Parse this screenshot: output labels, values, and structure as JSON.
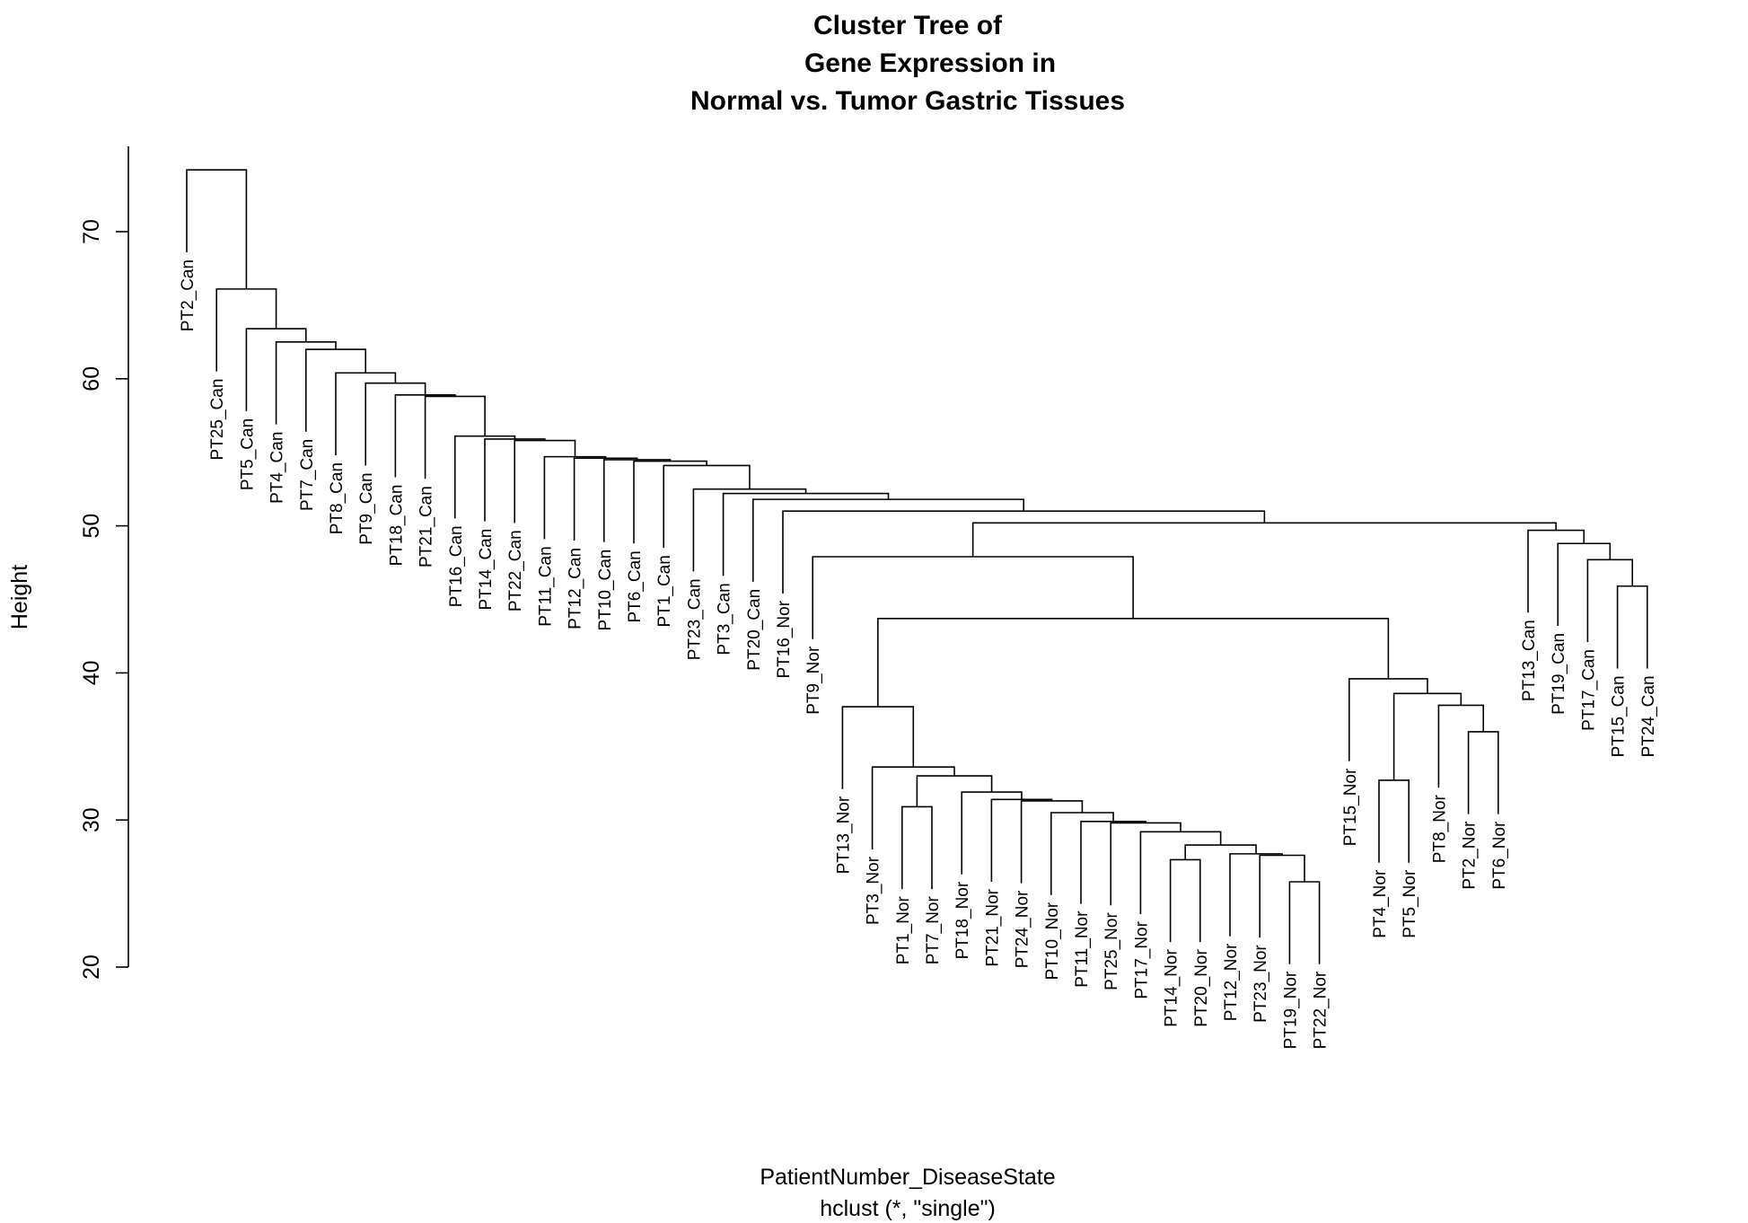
{
  "chart_data": {
    "type": "dendrogram",
    "title": [
      "Cluster Tree of",
      "Gene Expression in",
      "Normal vs. Tumor Gastric Tissues"
    ],
    "xlabel": "PatientNumber_DiseaseState",
    "ylabel": "Height",
    "subtitle": "hclust (*, \"single\")",
    "ylim": [
      20,
      75
    ],
    "yticks": [
      20,
      30,
      40,
      50,
      60,
      70
    ],
    "leaves": [
      "PT2_Can",
      "PT25_Can",
      "PT5_Can",
      "PT4_Can",
      "PT7_Can",
      "PT8_Can",
      "PT9_Can",
      "PT18_Can",
      "PT21_Can",
      "PT16_Can",
      "PT14_Can",
      "PT22_Can",
      "PT11_Can",
      "PT12_Can",
      "PT10_Can",
      "PT6_Can",
      "PT1_Can",
      "PT23_Can",
      "PT3_Can",
      "PT20_Can",
      "PT16_Nor",
      "PT9_Nor",
      "PT13_Nor",
      "PT3_Nor",
      "PT1_Nor",
      "PT7_Nor",
      "PT18_Nor",
      "PT21_Nor",
      "PT24_Nor",
      "PT10_Nor",
      "PT11_Nor",
      "PT25_Nor",
      "PT17_Nor",
      "PT14_Nor",
      "PT20_Nor",
      "PT12_Nor",
      "PT23_Nor",
      "PT19_Nor",
      "PT22_Nor",
      "PT15_Nor",
      "PT4_Nor",
      "PT5_Nor",
      "PT8_Nor",
      "PT2_Nor",
      "PT6_Nor",
      "PT13_Can",
      "PT19_Can",
      "PT17_Can",
      "PT15_Can",
      "PT24_Can"
    ],
    "merges": [
      {
        "id": "m_pt14n_pt20n",
        "left": "PT14_Nor",
        "right": "PT20_Nor",
        "height": 27.3
      },
      {
        "id": "m_pt19n_pt22n",
        "left": "PT19_Nor",
        "right": "PT22_Nor",
        "height": 25.8
      },
      {
        "id": "m_pt23n",
        "left": "PT23_Nor",
        "right": "m_pt19n_pt22n",
        "height": 27.6
      },
      {
        "id": "m_pt12n",
        "left": "PT12_Nor",
        "right": "m_pt23n",
        "height": 27.7
      },
      {
        "id": "m_nor_a",
        "left": "m_pt14n_pt20n",
        "right": "m_pt12n",
        "height": 28.3
      },
      {
        "id": "m_pt17n",
        "left": "PT17_Nor",
        "right": "m_nor_a",
        "height": 29.2
      },
      {
        "id": "m_pt25n",
        "left": "PT25_Nor",
        "right": "m_pt17n",
        "height": 29.8
      },
      {
        "id": "m_pt11n",
        "left": "PT11_Nor",
        "right": "m_pt25n",
        "height": 29.9
      },
      {
        "id": "m_pt10n",
        "left": "PT10_Nor",
        "right": "m_pt11n",
        "height": 30.5
      },
      {
        "id": "m_pt24n",
        "left": "PT24_Nor",
        "right": "m_pt10n",
        "height": 31.3
      },
      {
        "id": "m_pt21n",
        "left": "PT21_Nor",
        "right": "m_pt24n",
        "height": 31.4
      },
      {
        "id": "m_pt18n",
        "left": "PT18_Nor",
        "right": "m_pt21n",
        "height": 31.9
      },
      {
        "id": "m_pt1n_pt7n",
        "left": "PT1_Nor",
        "right": "PT7_Nor",
        "height": 30.9
      },
      {
        "id": "m_nor_b",
        "left": "m_pt1n_pt7n",
        "right": "m_pt18n",
        "height": 33.0
      },
      {
        "id": "m_pt3n",
        "left": "PT3_Nor",
        "right": "m_nor_b",
        "height": 33.6
      },
      {
        "id": "m_pt13n",
        "left": "PT13_Nor",
        "right": "m_pt3n",
        "height": 37.7
      },
      {
        "id": "m_pt4n_pt5n",
        "left": "PT4_Nor",
        "right": "PT5_Nor",
        "height": 32.7
      },
      {
        "id": "m_pt2n_pt6n",
        "left": "PT2_Nor",
        "right": "PT6_Nor",
        "height": 36.0
      },
      {
        "id": "m_pt8n",
        "left": "PT8_Nor",
        "right": "m_pt2n_pt6n",
        "height": 37.8
      },
      {
        "id": "m_nor_c",
        "left": "m_pt4n_pt5n",
        "right": "m_pt8n",
        "height": 38.6
      },
      {
        "id": "m_pt15n",
        "left": "PT15_Nor",
        "right": "m_nor_c",
        "height": 39.6
      },
      {
        "id": "m_nor_d",
        "left": "m_pt13n",
        "right": "m_pt15n",
        "height": 43.7
      },
      {
        "id": "m_pt9n",
        "left": "PT9_Nor",
        "right": "m_nor_d",
        "height": 47.9
      },
      {
        "id": "m_pt15c_pt24c",
        "left": "PT15_Can",
        "right": "PT24_Can",
        "height": 45.9
      },
      {
        "id": "m_pt17c",
        "left": "PT17_Can",
        "right": "m_pt15c_pt24c",
        "height": 47.7
      },
      {
        "id": "m_pt19c",
        "left": "PT19_Can",
        "right": "m_pt17c",
        "height": 48.8
      },
      {
        "id": "m_pt13c",
        "left": "PT13_Can",
        "right": "m_pt19c",
        "height": 49.7
      },
      {
        "id": "m_mid",
        "left": "m_pt9n",
        "right": "m_pt13c",
        "height": 50.2
      },
      {
        "id": "m_pt16n",
        "left": "PT16_Nor",
        "right": "m_mid",
        "height": 51.0
      },
      {
        "id": "m_pt20c",
        "left": "PT20_Can",
        "right": "m_pt16n",
        "height": 51.8
      },
      {
        "id": "m_pt3c",
        "left": "PT3_Can",
        "right": "m_pt20c",
        "height": 52.2
      },
      {
        "id": "m_pt23c",
        "left": "PT23_Can",
        "right": "m_pt3c",
        "height": 52.5
      },
      {
        "id": "m_pt1c",
        "left": "PT1_Can",
        "right": "m_pt23c",
        "height": 54.1
      },
      {
        "id": "m_pt6c",
        "left": "PT6_Can",
        "right": "m_pt1c",
        "height": 54.4
      },
      {
        "id": "m_pt10c",
        "left": "PT10_Can",
        "right": "m_pt6c",
        "height": 54.5
      },
      {
        "id": "m_pt12c",
        "left": "PT12_Can",
        "right": "m_pt10c",
        "height": 54.6
      },
      {
        "id": "m_pt11c",
        "left": "PT11_Can",
        "right": "m_pt12c",
        "height": 54.7
      },
      {
        "id": "m_pt22c",
        "left": "PT22_Can",
        "right": "m_pt11c",
        "height": 55.8
      },
      {
        "id": "m_pt14c",
        "left": "PT14_Can",
        "right": "m_pt22c",
        "height": 55.9
      },
      {
        "id": "m_pt16c",
        "left": "PT16_Can",
        "right": "m_pt14c",
        "height": 56.1
      },
      {
        "id": "m_pt21c",
        "left": "PT21_Can",
        "right": "m_pt16c",
        "height": 58.8
      },
      {
        "id": "m_pt18c",
        "left": "PT18_Can",
        "right": "m_pt21c",
        "height": 58.9
      },
      {
        "id": "m_pt9c",
        "left": "PT9_Can",
        "right": "m_pt18c",
        "height": 59.7
      },
      {
        "id": "m_pt8c",
        "left": "PT8_Can",
        "right": "m_pt9c",
        "height": 60.4
      },
      {
        "id": "m_pt7c",
        "left": "PT7_Can",
        "right": "m_pt8c",
        "height": 62.0
      },
      {
        "id": "m_pt4c",
        "left": "PT4_Can",
        "right": "m_pt7c",
        "height": 62.5
      },
      {
        "id": "m_pt5c",
        "left": "PT5_Can",
        "right": "m_pt4c",
        "height": 63.4
      },
      {
        "id": "m_pt25c",
        "left": "PT25_Can",
        "right": "m_pt5c",
        "height": 66.1
      },
      {
        "id": "m_root",
        "left": "PT2_Can",
        "right": "m_pt25c",
        "height": 74.2
      }
    ]
  }
}
